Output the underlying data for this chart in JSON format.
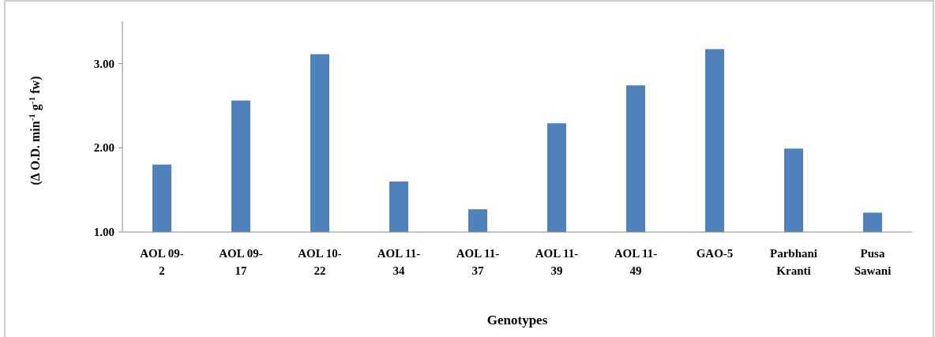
{
  "chart_data": {
    "type": "bar",
    "xlabel": "Genotypes",
    "ylabel": "(Δ O.D. min$^{-1}$ g$^{-1}$ fw)",
    "categories": [
      "AOL 09-2",
      "AOL 09-17",
      "AOL 10-22",
      "AOL 11-34",
      "AOL 11-37",
      "AOL 11-39",
      "AOL 11-49",
      "GAO-5",
      "Parbhani Kranti",
      "Pusa Sawani"
    ],
    "values": [
      1.8,
      2.56,
      3.11,
      1.6,
      1.27,
      2.29,
      2.74,
      3.17,
      1.99,
      1.23
    ],
    "color": "#4f81bd",
    "ylim": [
      1,
      3.5
    ],
    "yticks": [
      {
        "value": 1,
        "label": "1.00"
      },
      {
        "value": 2,
        "label": "2.00"
      },
      {
        "value": 3,
        "label": "3.00"
      }
    ],
    "grid": false
  }
}
